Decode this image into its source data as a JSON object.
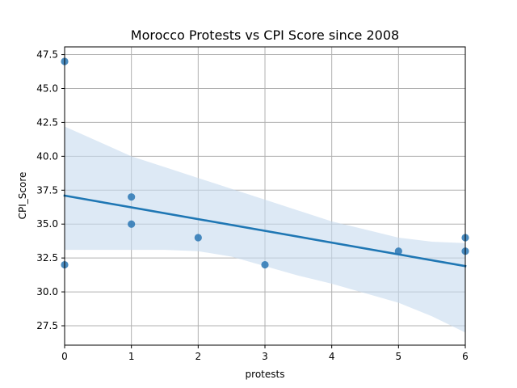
{
  "chart_data": {
    "type": "scatter",
    "title": "Morocco Protests vs CPI Score since 2008",
    "xlabel": "protests",
    "ylabel": "CPI_Score",
    "xlim": [
      0,
      6
    ],
    "ylim": [
      26.07,
      48.07
    ],
    "xticks": [
      0,
      1,
      2,
      3,
      4,
      5,
      6
    ],
    "xtick_labels": [
      "0",
      "1",
      "2",
      "3",
      "4",
      "5",
      "6"
    ],
    "yticks": [
      27.5,
      30.0,
      32.5,
      35.0,
      37.5,
      40.0,
      42.5,
      45.0,
      47.5
    ],
    "ytick_labels": [
      "27.5",
      "30.0",
      "32.5",
      "35.0",
      "37.5",
      "40.0",
      "42.5",
      "45.0",
      "47.5"
    ],
    "grid": true,
    "series": [
      {
        "points": [
          {
            "x": 0,
            "y": 47
          },
          {
            "x": 0,
            "y": 32
          },
          {
            "x": 1,
            "y": 37
          },
          {
            "x": 1,
            "y": 35
          },
          {
            "x": 2,
            "y": 34
          },
          {
            "x": 3,
            "y": 32
          },
          {
            "x": 5,
            "y": 33
          },
          {
            "x": 6,
            "y": 34
          },
          {
            "x": 6,
            "y": 33
          }
        ]
      }
    ],
    "regression": {
      "line": [
        {
          "x": 0,
          "y": 37.1
        },
        {
          "x": 6,
          "y": 31.9
        }
      ],
      "ci_upper": [
        {
          "x": 0,
          "y": 42.2
        },
        {
          "x": 0.5,
          "y": 41.1
        },
        {
          "x": 1,
          "y": 40.0
        },
        {
          "x": 1.5,
          "y": 39.2
        },
        {
          "x": 2,
          "y": 38.4
        },
        {
          "x": 2.5,
          "y": 37.6
        },
        {
          "x": 3,
          "y": 36.8
        },
        {
          "x": 3.5,
          "y": 36.0
        },
        {
          "x": 4,
          "y": 35.2
        },
        {
          "x": 4.5,
          "y": 34.6
        },
        {
          "x": 5,
          "y": 34.0
        },
        {
          "x": 5.5,
          "y": 33.7
        },
        {
          "x": 6,
          "y": 33.6
        }
      ],
      "ci_lower": [
        {
          "x": 0,
          "y": 33.1
        },
        {
          "x": 0.5,
          "y": 33.1
        },
        {
          "x": 1,
          "y": 33.1
        },
        {
          "x": 1.5,
          "y": 33.1
        },
        {
          "x": 2,
          "y": 33.0
        },
        {
          "x": 2.5,
          "y": 32.6
        },
        {
          "x": 3,
          "y": 31.9
        },
        {
          "x": 3.5,
          "y": 31.2
        },
        {
          "x": 4,
          "y": 30.6
        },
        {
          "x": 4.5,
          "y": 29.9
        },
        {
          "x": 5,
          "y": 29.2
        },
        {
          "x": 5.5,
          "y": 28.2
        },
        {
          "x": 6,
          "y": 27.0
        }
      ]
    },
    "colors": {
      "points": "#2a77b4",
      "line": "#1f77b4",
      "ci_band": "#c6dbef",
      "grid": "#b0b0b0",
      "axes": "#000000"
    }
  }
}
